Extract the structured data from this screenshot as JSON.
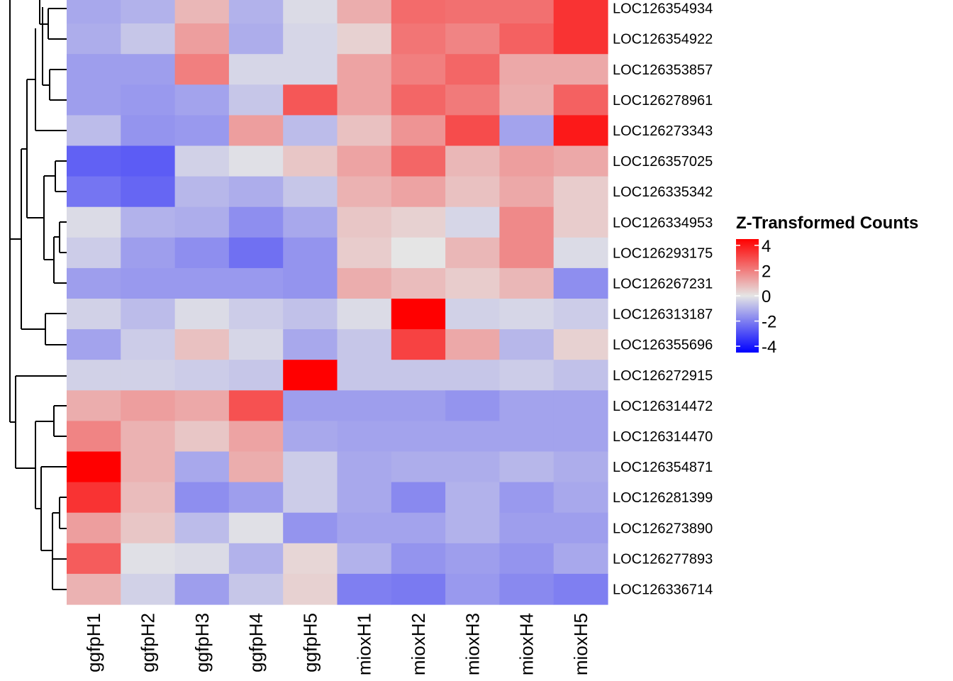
{
  "chart_data": {
    "type": "heatmap",
    "title": "",
    "legend": {
      "title": "Z-Transformed Counts",
      "ticks": [
        4,
        2,
        0,
        -2,
        -4
      ],
      "tick_labels": [
        "4",
        "2",
        "0",
        "-2",
        "-4"
      ],
      "range": [
        -4.5,
        4.5
      ],
      "colors": {
        "low": "#0000ff",
        "mid": "#e5e5e5",
        "high": "#ff0000"
      },
      "position": "right"
    },
    "columns": [
      "ggfpH1",
      "ggfpH2",
      "ggfpH3",
      "ggfpH4",
      "ggfpH5",
      "mioxH1",
      "mioxH2",
      "mioxH3",
      "mioxH4",
      "mioxH5"
    ],
    "rows": [
      "LOC126354934",
      "LOC126354922",
      "LOC126353857",
      "LOC126278961",
      "LOC126273343",
      "LOC126357025",
      "LOC126335342",
      "LOC126334953",
      "LOC126293175",
      "LOC126267231",
      "LOC126313187",
      "LOC126355696",
      "LOC126272915",
      "LOC126314472",
      "LOC126314470",
      "LOC126354871",
      "LOC126281399",
      "LOC126273890",
      "LOC126277893",
      "LOC126336714"
    ],
    "values": [
      [
        -1.2,
        -1.0,
        0.9,
        -1.0,
        -0.2,
        1.1,
        2.4,
        2.3,
        2.3,
        3.5
      ],
      [
        -1.1,
        -0.6,
        1.4,
        -1.1,
        -0.3,
        0.4,
        2.2,
        1.9,
        2.6,
        3.5
      ],
      [
        -1.4,
        -1.4,
        2.0,
        -0.3,
        -0.3,
        1.3,
        2.0,
        2.5,
        1.2,
        1.2
      ],
      [
        -1.4,
        -1.5,
        -1.3,
        -0.6,
        2.8,
        1.3,
        2.5,
        2.1,
        1.1,
        2.6
      ],
      [
        -0.8,
        -1.6,
        -1.5,
        1.4,
        -0.8,
        0.7,
        1.6,
        3.0,
        -1.3,
        4.0
      ],
      [
        -2.6,
        -2.7,
        -0.4,
        -0.1,
        0.6,
        1.3,
        2.5,
        0.9,
        1.4,
        1.2
      ],
      [
        -2.2,
        -2.5,
        -0.9,
        -1.1,
        -0.6,
        1.0,
        1.3,
        0.7,
        1.2,
        0.5
      ],
      [
        -0.2,
        -1.0,
        -1.1,
        -1.7,
        -1.2,
        0.6,
        0.4,
        -0.3,
        1.8,
        0.5
      ],
      [
        -0.5,
        -1.4,
        -1.7,
        -2.3,
        -1.6,
        0.5,
        0.0,
        0.9,
        1.8,
        -0.2
      ],
      [
        -1.4,
        -1.5,
        -1.5,
        -1.5,
        -1.6,
        1.1,
        0.8,
        0.5,
        0.9,
        -1.7
      ],
      [
        -0.4,
        -0.8,
        -0.2,
        -0.5,
        -0.7,
        -0.2,
        4.5,
        -0.4,
        -0.3,
        -0.5
      ],
      [
        -1.3,
        -0.5,
        0.7,
        -0.3,
        -1.2,
        -0.6,
        3.2,
        1.2,
        -0.9,
        0.4
      ],
      [
        -0.4,
        -0.4,
        -0.5,
        -0.6,
        4.5,
        -0.6,
        -0.6,
        -0.6,
        -0.5,
        -0.7
      ],
      [
        1.1,
        1.4,
        1.2,
        2.9,
        -1.4,
        -1.4,
        -1.4,
        -1.6,
        -1.3,
        -1.3
      ],
      [
        1.9,
        1.0,
        0.6,
        1.3,
        -1.2,
        -1.3,
        -1.3,
        -1.3,
        -1.3,
        -1.3
      ],
      [
        4.5,
        1.0,
        -1.2,
        1.1,
        -0.5,
        -1.2,
        -1.1,
        -1.1,
        -0.9,
        -1.1
      ],
      [
        3.5,
        0.8,
        -1.7,
        -1.4,
        -0.5,
        -1.2,
        -1.8,
        -1.0,
        -1.5,
        -1.2
      ],
      [
        1.4,
        0.6,
        -0.8,
        -0.1,
        -1.6,
        -1.3,
        -1.3,
        -1.0,
        -1.4,
        -1.4
      ],
      [
        2.7,
        -0.1,
        -0.2,
        -1.0,
        0.3,
        -1.0,
        -1.6,
        -1.4,
        -1.6,
        -1.2
      ],
      [
        1.0,
        -0.4,
        -1.4,
        -0.6,
        0.4,
        -2.0,
        -2.1,
        -1.5,
        -1.8,
        -2.0
      ]
    ]
  }
}
